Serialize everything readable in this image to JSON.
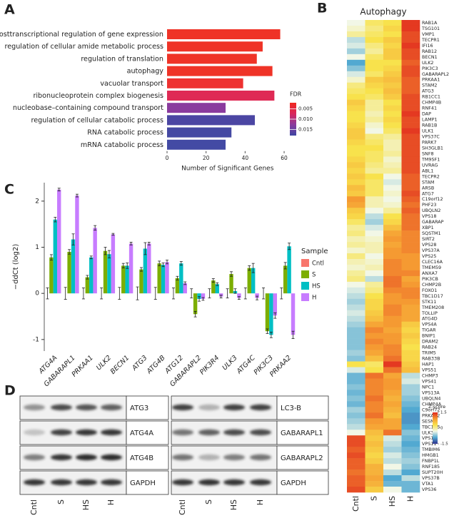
{
  "chart_data": [
    {
      "type": "barh",
      "panel": "A",
      "categories": [
        "posttranscriptional regulation of gene expression",
        "regulation of cellular amide metabolic process",
        "regulation of translation",
        "autophagy",
        "vacuolar transport",
        "ribonucleoprotein complex biogenesis",
        "nucleobase–containing compound transport",
        "regulation of cellular catabolic process",
        "RNA catabolic process",
        "mRNA catabolic process"
      ],
      "values": [
        58,
        49,
        46,
        54,
        39,
        55,
        30,
        45,
        33,
        30
      ],
      "colors": [
        "#ef3327",
        "#ef3327",
        "#ef3327",
        "#ef3327",
        "#ee3130",
        "#df2a55",
        "#8a3b9e",
        "#4b46a3",
        "#4549a3",
        "#434aa4"
      ],
      "xlim": [
        0,
        62
      ],
      "xticks": [
        0,
        20,
        40,
        60
      ],
      "xlabel": "Number of Significant Genes",
      "colorbar": {
        "title": "FDR",
        "lim": [
          0.002,
          0.018
        ],
        "ticks": [
          0.005,
          {
            "value": 0.01,
            "label": "0.010"
          },
          0.015
        ],
        "colors": [
          "#f0281e",
          "#d8265c",
          "#8a3a9e",
          "#3e45a2"
        ]
      }
    },
    {
      "type": "heatmap",
      "panel": "B",
      "title": "Autophagy",
      "x": [
        "Cntl",
        "S",
        "HS",
        "H"
      ],
      "y": [
        "RAB1A",
        "TSG101",
        "VMP1",
        "TECPR1",
        "IFI16",
        "RAB12",
        "BECN1",
        "ULK2",
        "PIK3C3",
        "GABARAPL2",
        "PRKAA1",
        "STAM2",
        "ATG3",
        "RB1CC1",
        "CHMP4B",
        "RNF41",
        "DAP",
        "LAMP1",
        "RAB1B",
        "ULK1",
        "VPS37C",
        "PARK7",
        "SH3GLB1",
        "SNF8",
        "TM9SF1",
        "UVRAG",
        "ABL1",
        "TECPR2",
        "STAM",
        "ARSB",
        "ATG7",
        "C19orf12",
        "PHF23",
        "UBQLN2",
        "VPS18",
        "GABARAP",
        "XBP1",
        "SQSTM1",
        "SIRT2",
        "VPS28",
        "VPS37A",
        "VPS25",
        "CLEC16A",
        "TMEM59",
        "ANXA7",
        "PIK3CB",
        "CHMP2B",
        "FOXO1",
        "TBC1D17",
        "STK11",
        "TMEM208",
        "TOLLIP",
        "ATG4D",
        "VPS4A",
        "TIGAR",
        "BNIP1",
        "DRAM2",
        "RAB24",
        "TRIM5",
        "RAB33B",
        "HAP1",
        "VPS51",
        "CHMP3",
        "VPS41",
        "NPC1",
        "VPS13A",
        "UBQLN4",
        "CHMP4A",
        "C9orf72",
        "PRKAA2",
        "SESN2",
        "TBC1D5",
        "ULK3",
        "VPS11",
        "VPS11",
        "TMBIM6",
        "HMGB1",
        "FNBP1L",
        "RNF185",
        "SUPT20H",
        "VPS37B",
        "VTA1",
        "VPS36"
      ],
      "values": [
        [
          -0.3,
          0.2,
          0.3,
          1.4
        ],
        [
          -0.2,
          0.1,
          0.4,
          1.4
        ],
        [
          0.0,
          0.2,
          0.3,
          1.3
        ],
        [
          -0.5,
          0.3,
          0.5,
          1.3
        ],
        [
          -0.4,
          0.1,
          0.4,
          1.4
        ],
        [
          -0.6,
          0.0,
          0.5,
          1.3
        ],
        [
          -0.3,
          0.2,
          0.5,
          1.3
        ],
        [
          -0.9,
          0.3,
          0.3,
          1.2
        ],
        [
          -0.7,
          0.3,
          0.4,
          1.3
        ],
        [
          -0.4,
          0.2,
          0.5,
          1.3
        ],
        [
          -0.2,
          0.5,
          0.6,
          1.2
        ],
        [
          0.1,
          0.4,
          0.5,
          1.2
        ],
        [
          0.2,
          0.3,
          0.6,
          1.2
        ],
        [
          0.3,
          0.2,
          0.5,
          1.3
        ],
        [
          0.5,
          0.0,
          0.3,
          1.3
        ],
        [
          0.4,
          0.0,
          0.4,
          1.3
        ],
        [
          0.3,
          -0.1,
          0.3,
          1.4
        ],
        [
          0.3,
          0.0,
          0.4,
          1.3
        ],
        [
          0.4,
          -0.2,
          0.3,
          1.3
        ],
        [
          0.5,
          -0.3,
          0.2,
          1.4
        ],
        [
          0.5,
          0.1,
          0.0,
          1.3
        ],
        [
          0.4,
          0.2,
          -0.1,
          1.3
        ],
        [
          0.3,
          0.3,
          -0.1,
          1.3
        ],
        [
          0.3,
          0.2,
          0.0,
          1.3
        ],
        [
          0.4,
          0.2,
          -0.2,
          1.3
        ],
        [
          0.5,
          0.1,
          -0.1,
          1.3
        ],
        [
          0.4,
          0.0,
          0.0,
          1.3
        ],
        [
          0.5,
          0.3,
          -0.3,
          1.2
        ],
        [
          0.4,
          0.2,
          -0.4,
          1.2
        ],
        [
          0.6,
          0.2,
          -0.3,
          1.2
        ],
        [
          0.5,
          0.2,
          -0.2,
          1.3
        ],
        [
          0.9,
          -0.1,
          -0.3,
          1.2
        ],
        [
          0.8,
          -0.1,
          -0.2,
          1.1
        ],
        [
          0.5,
          -0.3,
          0.0,
          1.2
        ],
        [
          0.4,
          -0.5,
          0.3,
          1.1
        ],
        [
          0.2,
          -0.6,
          0.4,
          1.1
        ],
        [
          0.0,
          -0.4,
          0.6,
          1.1
        ],
        [
          0.1,
          -0.3,
          0.8,
          1.0
        ],
        [
          -0.1,
          -0.2,
          0.9,
          1.0
        ],
        [
          0.0,
          -0.1,
          0.8,
          1.0
        ],
        [
          -0.2,
          -0.1,
          0.9,
          1.0
        ],
        [
          0.1,
          -0.3,
          0.9,
          0.9
        ],
        [
          -0.1,
          -0.2,
          1.0,
          0.9
        ],
        [
          -0.2,
          -0.1,
          1.0,
          0.9
        ],
        [
          0.0,
          -0.3,
          1.0,
          1.0
        ],
        [
          0.1,
          -0.5,
          1.1,
          0.8
        ],
        [
          -0.3,
          0.0,
          1.1,
          0.9
        ],
        [
          -0.4,
          0.1,
          1.0,
          1.0
        ],
        [
          -0.5,
          0.3,
          0.9,
          1.0
        ],
        [
          -0.6,
          0.4,
          0.9,
          0.9
        ],
        [
          -0.5,
          0.4,
          1.0,
          0.8
        ],
        [
          -0.4,
          0.5,
          1.0,
          0.8
        ],
        [
          -0.5,
          0.6,
          0.9,
          0.8
        ],
        [
          -0.6,
          0.8,
          0.9,
          0.5
        ],
        [
          -0.7,
          1.0,
          0.8,
          0.4
        ],
        [
          -0.7,
          0.9,
          0.9,
          0.5
        ],
        [
          -0.7,
          1.0,
          0.9,
          0.4
        ],
        [
          -0.7,
          0.9,
          1.0,
          0.3
        ],
        [
          -0.6,
          0.8,
          1.0,
          0.4
        ],
        [
          -0.7,
          0.6,
          1.1,
          0.4
        ],
        [
          0.3,
          0.2,
          1.4,
          0.5
        ],
        [
          -0.4,
          0.3,
          1.1,
          0.6
        ],
        [
          -0.8,
          1.1,
          0.8,
          -0.5
        ],
        [
          -0.8,
          1.0,
          0.9,
          -0.4
        ],
        [
          -0.7,
          1.0,
          0.9,
          -0.6
        ],
        [
          -0.8,
          1.0,
          0.8,
          -0.6
        ],
        [
          -0.7,
          1.1,
          0.7,
          -0.7
        ],
        [
          -0.8,
          1.0,
          0.8,
          -0.8
        ],
        [
          -0.6,
          1.0,
          0.7,
          -0.9
        ],
        [
          -0.7,
          1.1,
          0.6,
          -1.0
        ],
        [
          -0.6,
          0.9,
          0.8,
          -1.0
        ],
        [
          -0.5,
          0.8,
          0.8,
          -0.9
        ],
        [
          -0.3,
          0.6,
          1.1,
          -0.7
        ],
        [
          1.3,
          0.5,
          -0.4,
          -0.8
        ],
        [
          1.3,
          0.6,
          -0.5,
          -0.9
        ],
        [
          1.2,
          0.5,
          -0.6,
          -0.8
        ],
        [
          1.3,
          0.4,
          -0.4,
          -0.7
        ],
        [
          1.2,
          0.5,
          -0.5,
          -0.6
        ],
        [
          1.2,
          0.7,
          -0.3,
          -0.7
        ],
        [
          1.1,
          0.7,
          -0.5,
          -0.9
        ],
        [
          1.2,
          0.8,
          -0.9,
          -0.5
        ],
        [
          1.2,
          0.7,
          -0.8,
          -0.8
        ],
        [
          1.3,
          0.5,
          -0.3,
          -0.8
        ]
      ],
      "zlim": [
        -1.5,
        1.5
      ],
      "colorbar": {
        "title": "Z-score",
        "ticks": [
          1.5,
          0,
          -1.5
        ]
      },
      "colors": [
        "#2d2f8c",
        "#52a9d1",
        "#f2f7e6",
        "#f8e24c",
        "#f59a32",
        "#e0261e"
      ]
    },
    {
      "type": "bar",
      "panel": "C",
      "categories": [
        "ATG4A",
        "GABARAPL1",
        "PRKAA1",
        "ULK2",
        "BECN1",
        "ATG3",
        "ATG4B",
        "ATG12",
        "GABARAPL2",
        "PIK3R4",
        "ULK3",
        "ATG4C",
        "PIK3C3",
        "PRKAA2"
      ],
      "series": [
        {
          "name": "Cntl",
          "color": "#f8766d",
          "values": [
            0,
            0,
            0,
            0,
            0,
            0,
            0,
            0,
            0,
            0,
            0,
            0,
            0,
            0
          ],
          "errors": [
            0.12,
            0.13,
            0.12,
            0.12,
            0.13,
            0.14,
            0.13,
            0.12,
            0.1,
            0.1,
            0.1,
            0.12,
            0.12,
            0.12
          ]
        },
        {
          "name": "S",
          "color": "#7cae00",
          "values": [
            0.78,
            0.9,
            0.35,
            0.92,
            0.6,
            0.52,
            0.65,
            0.33,
            -0.45,
            0.28,
            0.42,
            0.55,
            -0.82,
            0.6
          ],
          "errors": [
            0.06,
            0.05,
            0.04,
            0.08,
            0.05,
            0.04,
            0.05,
            0.04,
            0.06,
            0.04,
            0.05,
            0.05,
            0.05,
            0.07
          ]
        },
        {
          "name": "HS",
          "color": "#00bfc4",
          "values": [
            1.6,
            1.17,
            0.78,
            0.85,
            0.6,
            0.97,
            0.62,
            0.65,
            -0.12,
            0.2,
            0.05,
            0.55,
            -0.9,
            1.02
          ],
          "errors": [
            0.05,
            0.12,
            0.03,
            0.08,
            0.06,
            0.13,
            0.04,
            0.04,
            0.05,
            0.03,
            0.05,
            0.1,
            0.06,
            0.07
          ]
        },
        {
          "name": "H",
          "color": "#c77cff",
          "values": [
            2.25,
            2.12,
            1.42,
            1.28,
            1.08,
            1.08,
            0.68,
            0.22,
            -0.12,
            -0.07,
            -0.1,
            -0.1,
            -0.48,
            -0.9
          ],
          "errors": [
            0.03,
            0.03,
            0.05,
            0.02,
            0.03,
            0.03,
            0.04,
            0.03,
            0.03,
            0.03,
            0.03,
            0.04,
            0.06,
            0.08
          ]
        }
      ],
      "ylim": [
        -1.25,
        2.4
      ],
      "yticks": [
        -1,
        0,
        1,
        2
      ],
      "ylabel": "−ddCt (log2)",
      "legend_title": "Sample"
    }
  ],
  "blots": {
    "panel": "D",
    "lanes": [
      "Cntl",
      "S",
      "HS",
      "H"
    ],
    "left": [
      "ATG3",
      "ATG4A",
      "ATG4B",
      "GAPDH"
    ],
    "right": [
      "LC3-B",
      "GABARAPL1",
      "GABARAPL2",
      "GAPDH"
    ]
  }
}
